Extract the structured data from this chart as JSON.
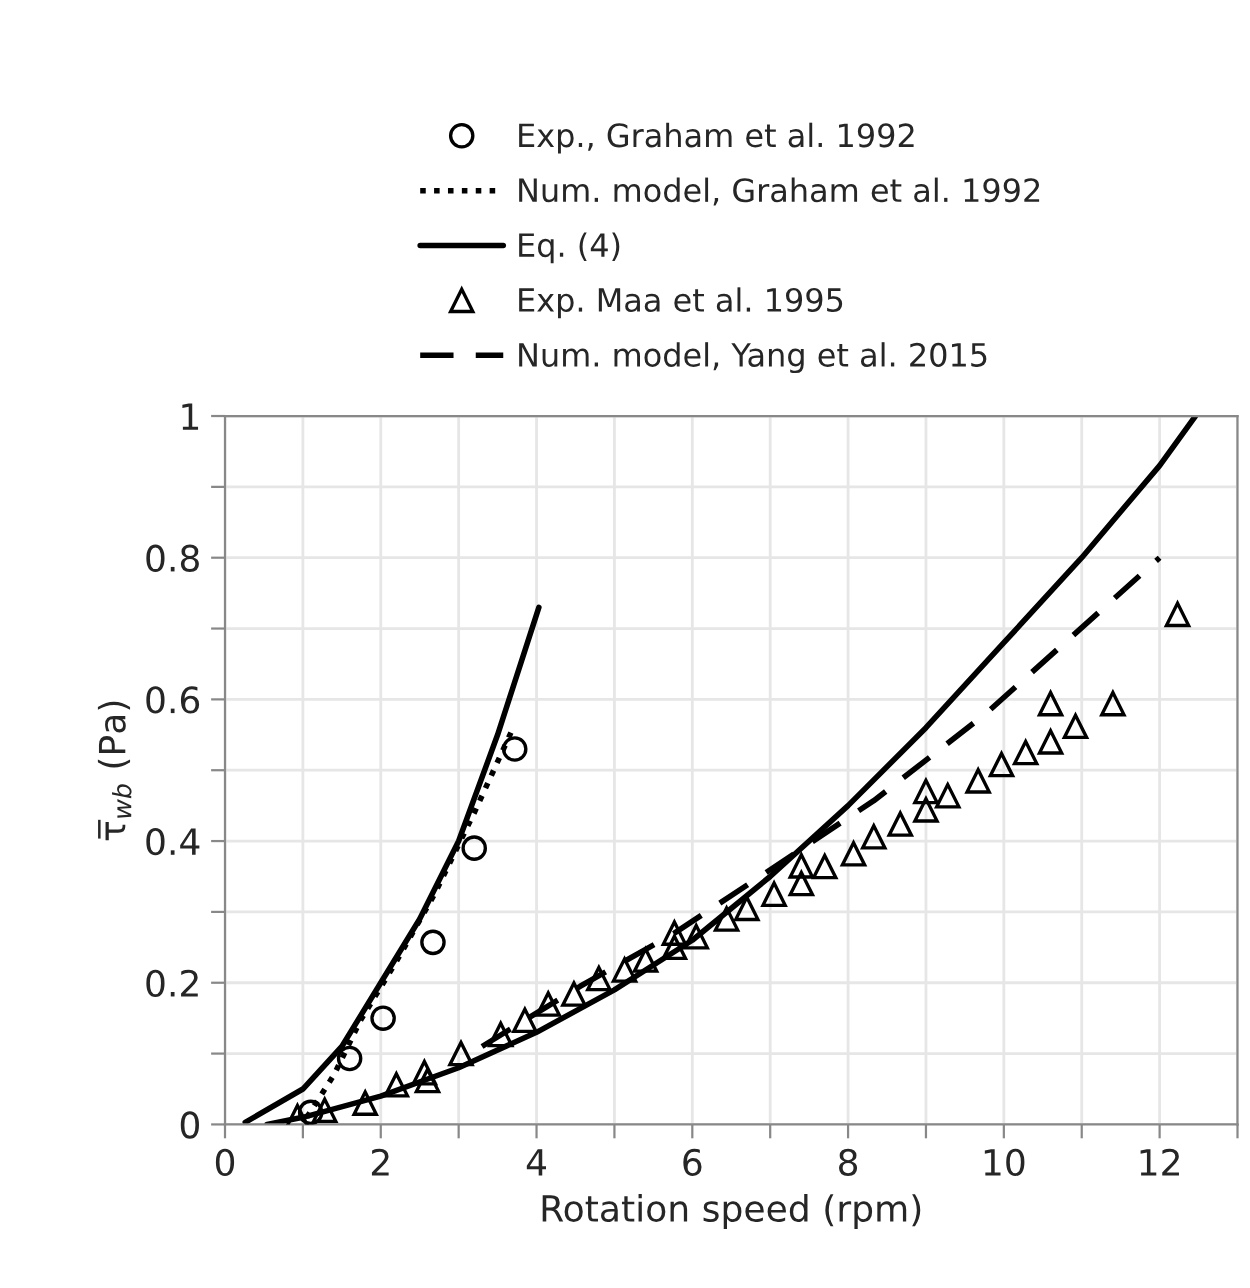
{
  "chart_data": {
    "type": "line",
    "xlabel": "Rotation speed (rpm)",
    "ylabel": "τ̅$_{wb}$ (Pa)",
    "xlim": [
      0,
      13
    ],
    "ylim": [
      0,
      1
    ],
    "xticks": [
      0,
      {
        "value": 1,
        "label": null
      },
      2,
      {
        "value": 3,
        "label": null
      },
      4,
      {
        "value": 5,
        "label": null
      },
      6,
      {
        "value": 7,
        "label": null
      },
      8,
      {
        "value": 9,
        "label": null
      },
      10,
      {
        "value": 11,
        "label": null
      },
      12,
      {
        "value": 13,
        "label": null
      }
    ],
    "yticks": [
      0,
      {
        "value": 0.1,
        "label": null
      },
      0.2,
      {
        "value": 0.3,
        "label": null
      },
      0.4,
      {
        "value": 0.5,
        "label": null
      },
      0.6,
      {
        "value": 0.7,
        "label": null
      },
      0.8,
      {
        "value": 0.9,
        "label": null
      },
      1
    ],
    "grid": true,
    "legend": "top",
    "series": [
      {
        "name": "Exp., Graham et al. 1992",
        "type": "scatter",
        "marker": "circle",
        "color": "#000000",
        "x": [
          1.1,
          1.6,
          2.03,
          2.67,
          3.2,
          3.72
        ],
        "values": [
          0.017,
          0.093,
          0.15,
          0.257,
          0.39,
          0.53
        ]
      },
      {
        "name": "Num. model, Graham et al. 1992",
        "line_style": "dotted",
        "color": "#000000",
        "x": [
          1.05,
          1.4,
          1.74,
          2.2,
          2.69,
          3.2,
          3.7
        ],
        "values": [
          0.01,
          0.07,
          0.147,
          0.23,
          0.325,
          0.44,
          0.56
        ]
      },
      {
        "name": "Eq. (4)",
        "line_style": "solid",
        "color": "#000000",
        "x": [
          0.26,
          1,
          1.5,
          2,
          2.5,
          3,
          3.5,
          4.03
        ],
        "values": [
          0.003,
          0.05,
          0.11,
          0.2,
          0.29,
          0.4,
          0.55,
          0.73
        ]
      },
      {
        "line_style": "solid",
        "color": "#000000",
        "x": [
          0.54,
          1,
          2,
          3,
          4,
          5,
          6,
          7,
          8,
          9,
          10,
          11,
          12,
          12.46
        ],
        "values": [
          0.0,
          0.01,
          0.04,
          0.08,
          0.13,
          0.19,
          0.26,
          0.35,
          0.45,
          0.56,
          0.68,
          0.8,
          0.93,
          1.0
        ]
      },
      {
        "name": "Exp. Maa et al. 1995",
        "type": "scatter",
        "marker": "triangle",
        "color": "#000000",
        "x": [
          0.93,
          1.28,
          1.8,
          2.2,
          2.56,
          2.6,
          3.03,
          3.54,
          3.85,
          4.15,
          4.48,
          4.8,
          5.13,
          5.4,
          5.77,
          5.77,
          6.05,
          6.44,
          6.7,
          7.05,
          7.4,
          7.4,
          7.7,
          8.07,
          8.33,
          8.67,
          9.0,
          9.0,
          9.28,
          9.67,
          9.97,
          10.28,
          10.6,
          10.6,
          10.92,
          11.4,
          12.23
        ],
        "values": [
          0.011,
          0.02,
          0.03,
          0.056,
          0.073,
          0.062,
          0.1,
          0.127,
          0.147,
          0.17,
          0.184,
          0.206,
          0.218,
          0.232,
          0.27,
          0.25,
          0.265,
          0.29,
          0.305,
          0.325,
          0.365,
          0.34,
          0.364,
          0.382,
          0.406,
          0.424,
          0.47,
          0.444,
          0.464,
          0.485,
          0.508,
          0.525,
          0.54,
          0.594,
          0.562,
          0.594,
          0.72
        ]
      },
      {
        "name": "Num. model, Yang et al. 2015",
        "line_style": "dashed",
        "color": "#000000",
        "x": [
          3.3,
          4.56,
          5.77,
          6.87,
          8.33,
          9.77,
          12.0
        ],
        "values": [
          0.11,
          0.195,
          0.27,
          0.35,
          0.457,
          0.58,
          0.8
        ]
      }
    ]
  }
}
